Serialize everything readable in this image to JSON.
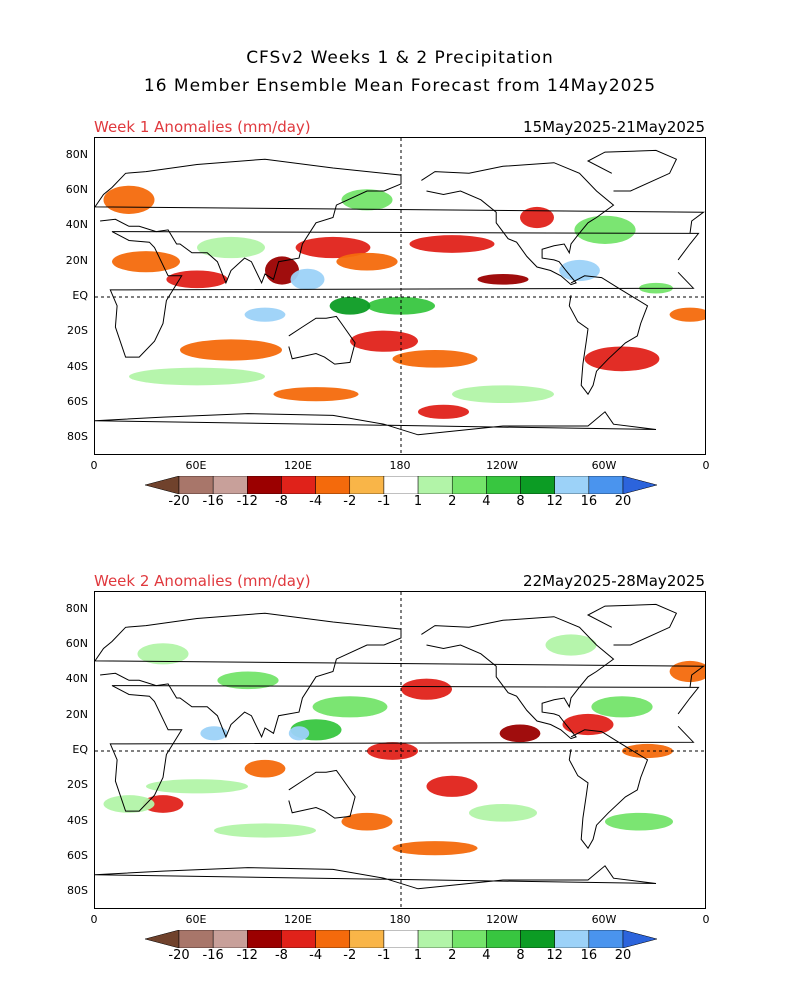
{
  "title_line1": "CFSv2 Weeks 1 & 2 Precipitation",
  "title_line2": "16 Member Ensemble Mean Forecast from 14May2025",
  "panels": [
    {
      "label": "Week 1 Anomalies (mm/day)",
      "dates": "15May2025-21May2025"
    },
    {
      "label": "Week 2 Anomalies (mm/day)",
      "dates": "22May2025-28May2025"
    }
  ],
  "lat_labels": [
    "80N",
    "60N",
    "40N",
    "20N",
    "EQ",
    "20S",
    "40S",
    "60S",
    "80S"
  ],
  "lon_labels": [
    "0",
    "60E",
    "120E",
    "180",
    "120W",
    "60W",
    "0"
  ],
  "colorbar": {
    "ticks": [
      "-20",
      "-16",
      "-12",
      "-8",
      "-4",
      "-2",
      "-1",
      "1",
      "2",
      "4",
      "8",
      "12",
      "16",
      "20"
    ],
    "colors": [
      "#70422c",
      "#a8766a",
      "#c8a09a",
      "#9b0000",
      "#e0221a",
      "#f46a0c",
      "#f9b548",
      "#ffffff",
      "#b2f4a8",
      "#74e46a",
      "#38c640",
      "#0c9c24",
      "#9cd2f8",
      "#4a94ee",
      "#2c64dc"
    ]
  }
}
